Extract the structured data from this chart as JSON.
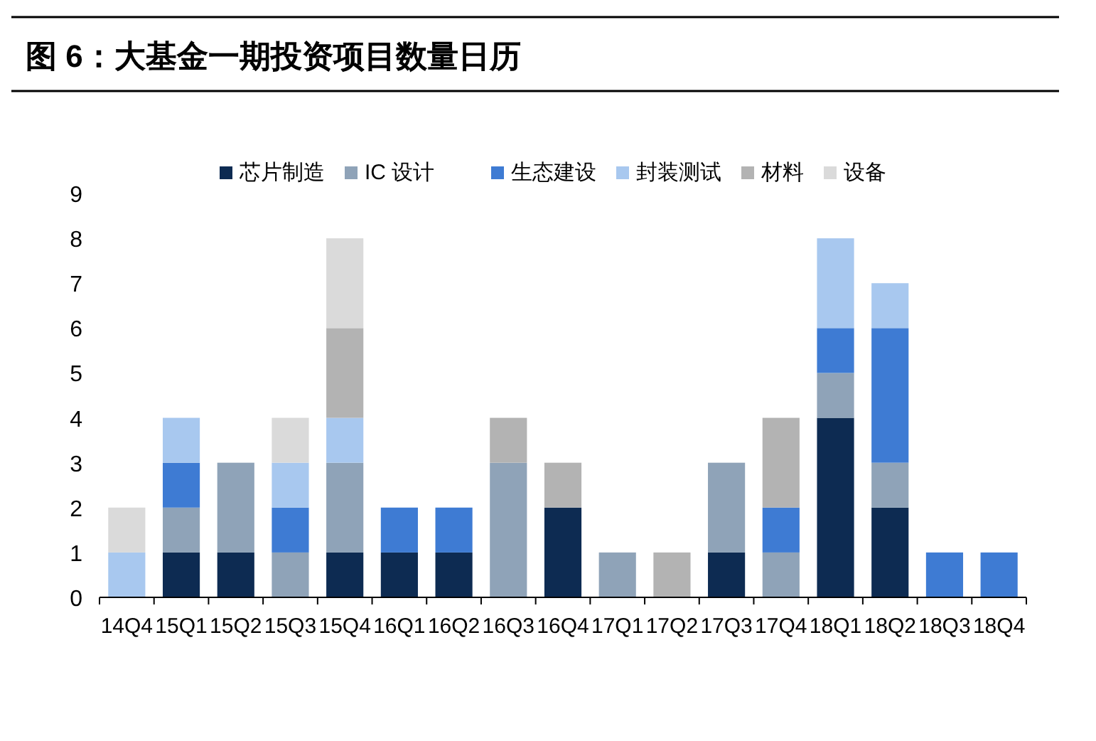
{
  "chart_data": {
    "type": "bar",
    "title": "图 6：大基金一期投资项目数量日历",
    "stacked": true,
    "categories": [
      "14Q4",
      "15Q1",
      "15Q2",
      "15Q3",
      "15Q4",
      "16Q1",
      "16Q2",
      "16Q3",
      "16Q4",
      "17Q1",
      "17Q2",
      "17Q3",
      "17Q4",
      "18Q1",
      "18Q2",
      "18Q3",
      "18Q4"
    ],
    "series": [
      {
        "name": "芯片制造",
        "color": "#0d2b52",
        "values": [
          0,
          1,
          1,
          0,
          1,
          1,
          1,
          0,
          2,
          0,
          0,
          1,
          0,
          4,
          2,
          0,
          0
        ]
      },
      {
        "name": "IC 设计",
        "color": "#8fa3b8",
        "values": [
          0,
          1,
          2,
          1,
          2,
          0,
          0,
          3,
          0,
          1,
          0,
          2,
          1,
          1,
          1,
          0,
          0
        ]
      },
      {
        "name": "生态建设",
        "color": "#3e7bd3",
        "values": [
          0,
          1,
          0,
          1,
          0,
          1,
          1,
          0,
          0,
          0,
          0,
          0,
          1,
          1,
          3,
          1,
          1
        ]
      },
      {
        "name": "封装测试",
        "color": "#a8c8ef",
        "values": [
          1,
          1,
          0,
          1,
          1,
          0,
          0,
          0,
          0,
          0,
          0,
          0,
          0,
          2,
          1,
          0,
          0
        ]
      },
      {
        "name": "材料",
        "color": "#b3b3b3",
        "values": [
          0,
          0,
          0,
          0,
          2,
          0,
          0,
          1,
          1,
          0,
          1,
          0,
          2,
          0,
          0,
          0,
          0
        ]
      },
      {
        "name": "设备",
        "color": "#dadada",
        "values": [
          1,
          0,
          0,
          1,
          2,
          0,
          0,
          0,
          0,
          0,
          0,
          0,
          0,
          0,
          0,
          0,
          0
        ]
      }
    ],
    "ylim": [
      0,
      9
    ],
    "yticks": [
      0,
      1,
      2,
      3,
      4,
      5,
      6,
      7,
      8,
      9
    ],
    "grid": false,
    "legend": "top"
  }
}
